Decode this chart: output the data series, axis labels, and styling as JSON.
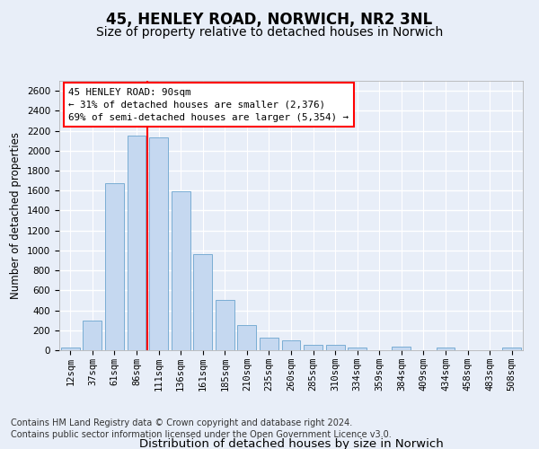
{
  "title1": "45, HENLEY ROAD, NORWICH, NR2 3NL",
  "title2": "Size of property relative to detached houses in Norwich",
  "xlabel": "Distribution of detached houses by size in Norwich",
  "ylabel": "Number of detached properties",
  "categories": [
    "12sqm",
    "37sqm",
    "61sqm",
    "86sqm",
    "111sqm",
    "136sqm",
    "161sqm",
    "185sqm",
    "210sqm",
    "235sqm",
    "260sqm",
    "285sqm",
    "310sqm",
    "334sqm",
    "359sqm",
    "384sqm",
    "409sqm",
    "434sqm",
    "458sqm",
    "483sqm",
    "508sqm"
  ],
  "values": [
    25,
    300,
    1670,
    2150,
    2130,
    1590,
    960,
    500,
    250,
    125,
    100,
    50,
    50,
    30,
    0,
    35,
    0,
    25,
    0,
    0,
    25
  ],
  "bar_color": "#c5d8f0",
  "bar_edge_color": "#7aadd4",
  "vline_pos": 3.5,
  "vline_color": "red",
  "annotation_text": "45 HENLEY ROAD: 90sqm\n← 31% of detached houses are smaller (2,376)\n69% of semi-detached houses are larger (5,354) →",
  "annotation_box_facecolor": "white",
  "annotation_box_edgecolor": "red",
  "ylim": [
    0,
    2700
  ],
  "ytick_interval": 200,
  "footnote1": "Contains HM Land Registry data © Crown copyright and database right 2024.",
  "footnote2": "Contains public sector information licensed under the Open Government Licence v3.0.",
  "bg_color": "#e8eef8",
  "grid_color": "white",
  "title1_fontsize": 12,
  "title2_fontsize": 10,
  "xlabel_fontsize": 9.5,
  "ylabel_fontsize": 8.5,
  "tick_fontsize": 7.5,
  "annot_fontsize": 7.8,
  "footnote_fontsize": 7
}
